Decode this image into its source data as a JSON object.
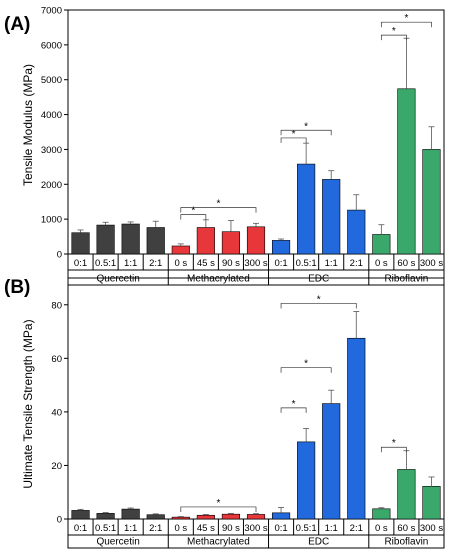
{
  "chart_data": [
    {
      "type": "bar",
      "panel_label": "(A)",
      "ylabel": "Tensile Modulus (MPa)",
      "ylim": [
        0,
        7000
      ],
      "yticks": [
        0,
        1000,
        2000,
        3000,
        4000,
        5000,
        6000,
        7000
      ],
      "groups": [
        {
          "name": "Quercetin",
          "color": "#404040",
          "categories": [
            "0:1",
            "0.5:1",
            "1:1",
            "2:1"
          ],
          "values": [
            610,
            830,
            860,
            760
          ],
          "errors": [
            80,
            80,
            60,
            180
          ]
        },
        {
          "name": "Methacrylated",
          "color": "#e8373a",
          "categories": [
            "0 s",
            "45 s",
            "90 s",
            "300 s"
          ],
          "values": [
            230,
            760,
            640,
            780
          ],
          "errors": [
            60,
            220,
            320,
            100
          ]
        },
        {
          "name": "EDC",
          "color": "#2169dc",
          "categories": [
            "0:1",
            "0.5:1",
            "1:1",
            "2:1"
          ],
          "values": [
            390,
            2580,
            2140,
            1260
          ],
          "errors": [
            40,
            600,
            250,
            440
          ]
        },
        {
          "name": "Riboflavin",
          "color": "#3aa86b",
          "categories": [
            "0 s",
            "60 s",
            "300 s"
          ],
          "values": [
            560,
            4740,
            3000
          ],
          "errors": [
            280,
            1450,
            650
          ]
        }
      ],
      "significance": [
        {
          "group": 1,
          "from": 0,
          "to": 1,
          "y": 1130,
          "mark": "*"
        },
        {
          "group": 1,
          "from": 0,
          "to": 3,
          "y": 1330,
          "mark": "*"
        },
        {
          "group": 2,
          "from": 0,
          "to": 1,
          "y": 3330,
          "mark": "*"
        },
        {
          "group": 2,
          "from": 0,
          "to": 2,
          "y": 3550,
          "mark": "*"
        },
        {
          "group": 3,
          "from": 0,
          "to": 1,
          "y": 6280,
          "mark": "*"
        },
        {
          "group": 3,
          "from": 0,
          "to": 2,
          "y": 6650,
          "mark": "*"
        }
      ]
    },
    {
      "type": "bar",
      "panel_label": "(B)",
      "ylabel": "Ultimate Tensile Strength (MPa)",
      "ylim": [
        0,
        90
      ],
      "yticks": [
        0,
        20,
        40,
        60,
        80
      ],
      "groups": [
        {
          "name": "Quercetin",
          "color": "#404040",
          "categories": [
            "0:1",
            "0.5:1",
            "1:1",
            "2:1"
          ],
          "values": [
            3.2,
            2.1,
            3.7,
            1.6
          ],
          "errors": [
            0.4,
            0.3,
            0.4,
            0.3
          ]
        },
        {
          "name": "Methacrylated",
          "color": "#e8373a",
          "categories": [
            "0 s",
            "45 s",
            "90 s",
            "300 s"
          ],
          "values": [
            0.7,
            1.4,
            1.8,
            1.7
          ],
          "errors": [
            0.2,
            0.3,
            0.3,
            0.3
          ]
        },
        {
          "name": "EDC",
          "color": "#2169dc",
          "categories": [
            "0:1",
            "0.5:1",
            "1:1",
            "2:1"
          ],
          "values": [
            2.3,
            28.8,
            43.1,
            67.5
          ],
          "errors": [
            2.0,
            5.0,
            5.0,
            10.0
          ]
        },
        {
          "name": "Riboflavin",
          "color": "#3aa86b",
          "categories": [
            "0 s",
            "60 s",
            "300 s"
          ],
          "values": [
            3.8,
            18.5,
            12.2
          ],
          "errors": [
            0.4,
            7.0,
            3.5
          ]
        }
      ],
      "significance": [
        {
          "group": 1,
          "from": 0,
          "to": 3,
          "y": 4.5,
          "mark": "*"
        },
        {
          "group": 2,
          "from": 0,
          "to": 1,
          "y": 41.5,
          "mark": "*"
        },
        {
          "group": 2,
          "from": 0,
          "to": 2,
          "y": 56.5,
          "mark": "*"
        },
        {
          "group": 2,
          "from": 0,
          "to": 3,
          "y": 80.5,
          "mark": "*"
        },
        {
          "group": 3,
          "from": 0,
          "to": 1,
          "y": 26.8,
          "mark": "*"
        }
      ]
    }
  ]
}
